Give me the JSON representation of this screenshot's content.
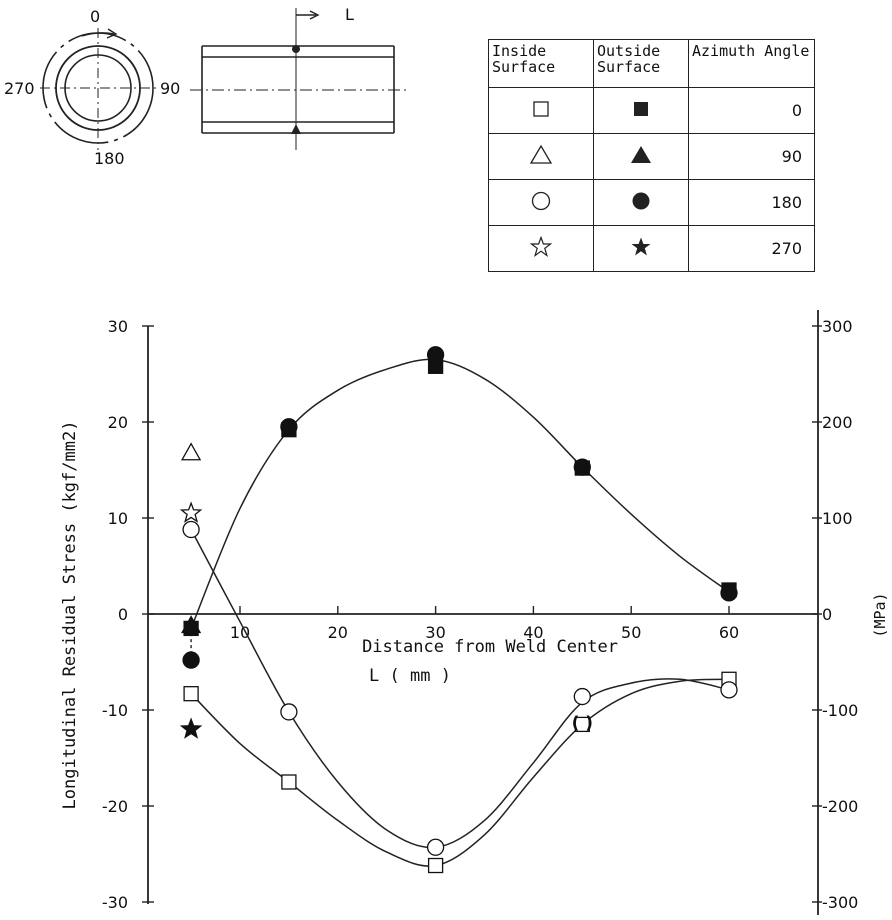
{
  "diagram": {
    "ring_angles": [
      "0",
      "90",
      "180",
      "270"
    ],
    "section_label": "L"
  },
  "legend": {
    "headers": [
      "Inside Surface",
      "Outside Surface",
      "Azimuth Angle"
    ],
    "rows": [
      {
        "inside_marker": "square-open-icon",
        "outside_marker": "square-filled-icon",
        "angle": "0"
      },
      {
        "inside_marker": "triangle-open-icon",
        "outside_marker": "triangle-filled-icon",
        "angle": "90"
      },
      {
        "inside_marker": "circle-open-icon",
        "outside_marker": "circle-filled-icon",
        "angle": "180"
      },
      {
        "inside_marker": "star-open-icon",
        "outside_marker": "star-filled-icon",
        "angle": "270"
      }
    ]
  },
  "chart_data": {
    "type": "scatter",
    "xlabel": "Distance from Weld Center",
    "xlabel2": "L ( mm )",
    "ylabel": "Longitudinal Residual Stress (kgf/mm2)",
    "ylabel_right": "(MPa)",
    "xlim": [
      -5,
      65
    ],
    "ylim": [
      -30,
      30
    ],
    "ylim_right": [
      -300,
      300
    ],
    "xticks": [
      10,
      20,
      30,
      40,
      50,
      60
    ],
    "yticks": [
      -30,
      -20,
      -10,
      0,
      10,
      20,
      30
    ],
    "yticks_right": [
      -300,
      -200,
      -100,
      0,
      100,
      200,
      300
    ],
    "grid": false,
    "series": [
      {
        "surface": "inside",
        "azimuth": "0",
        "marker": "square-open",
        "x": [
          5,
          15,
          30,
          45,
          60
        ],
        "y": [
          -8.3,
          -17.5,
          -26.2,
          -11.5,
          -6.8
        ]
      },
      {
        "surface": "inside",
        "azimuth": "90",
        "marker": "triangle-open",
        "x": [
          5
        ],
        "y": [
          16.8
        ]
      },
      {
        "surface": "inside",
        "azimuth": "180",
        "marker": "circle-open",
        "x": [
          5,
          15,
          30,
          45,
          60
        ],
        "y": [
          8.8,
          -10.2,
          -24.3,
          -8.6,
          -7.9
        ]
      },
      {
        "surface": "inside",
        "azimuth": "270",
        "marker": "star-open",
        "x": [
          5
        ],
        "y": [
          10.5
        ]
      },
      {
        "surface": "outside",
        "azimuth": "0",
        "marker": "square-filled",
        "x": [
          5,
          15,
          30,
          45,
          60
        ],
        "y": [
          -1.5,
          19.2,
          25.8,
          15.2,
          2.5
        ]
      },
      {
        "surface": "outside",
        "azimuth": "90",
        "marker": "triangle-filled",
        "x": [
          5
        ],
        "y": [
          -1.2
        ]
      },
      {
        "surface": "outside",
        "azimuth": "180",
        "marker": "circle-filled",
        "x": [
          5,
          15,
          30,
          45,
          60
        ],
        "y": [
          -4.8,
          19.5,
          27.0,
          15.3,
          2.2
        ]
      },
      {
        "surface": "outside",
        "azimuth": "270",
        "marker": "star-filled",
        "x": [
          5
        ],
        "y": [
          -12.0
        ]
      }
    ],
    "curves": [
      {
        "name": "outside",
        "x": [
          5,
          10,
          15,
          20,
          25,
          30,
          35,
          40,
          45,
          50,
          55,
          60
        ],
        "y": [
          -1.5,
          11,
          19.2,
          23.3,
          25.5,
          26.5,
          24.5,
          20.5,
          15.3,
          10.4,
          6.0,
          2.3
        ]
      },
      {
        "name": "inside-180",
        "x": [
          5,
          10,
          15,
          20,
          25,
          30,
          35,
          40,
          45,
          50,
          55,
          60
        ],
        "y": [
          8.8,
          -0.8,
          -10.2,
          -17.5,
          -22.5,
          -24.3,
          -21.5,
          -15.5,
          -9.2,
          -7.2,
          -6.8,
          -7.9
        ]
      },
      {
        "name": "inside-0",
        "x": [
          5,
          10,
          15,
          20,
          25,
          30,
          35,
          40,
          45,
          50,
          55,
          60
        ],
        "y": [
          -8.3,
          -13.5,
          -17.5,
          -21.5,
          -24.8,
          -26.2,
          -23.0,
          -17.0,
          -11.5,
          -8.3,
          -7.0,
          -6.8
        ]
      }
    ],
    "point_annotation": {
      "x": 45,
      "y": -11.3,
      "text": "( )"
    }
  }
}
